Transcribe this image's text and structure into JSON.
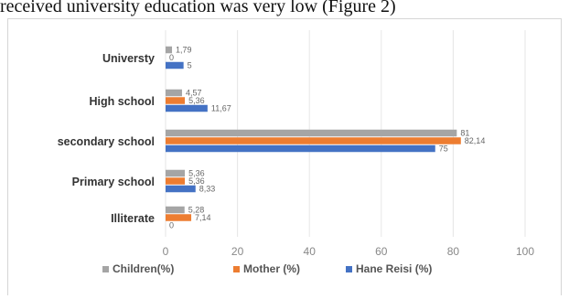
{
  "caption": "received university education was very low (Figure 2)",
  "chart_data": {
    "type": "bar",
    "orientation": "horizontal",
    "categories": [
      "Universty",
      "High school",
      "secondary school",
      "Primary school",
      "Illiterate"
    ],
    "series": [
      {
        "name": "Children(%)",
        "color": "#a5a5a5",
        "values": [
          1.79,
          4.57,
          81,
          5.36,
          5.28
        ],
        "labels": [
          "1,79",
          "4,57",
          "81",
          "5,36",
          "5,28"
        ]
      },
      {
        "name": "Mother (%)",
        "color": "#ed7d31",
        "values": [
          0,
          5.36,
          82.14,
          5.36,
          7.14
        ],
        "labels": [
          "0",
          "5,36",
          "82,14",
          "5,36",
          "7,14"
        ]
      },
      {
        "name": "Hane Reisi (%)",
        "color": "#4472c4",
        "values": [
          5,
          11.67,
          75,
          8.33,
          0
        ],
        "labels": [
          "5",
          "11,67",
          "75",
          "8,33",
          "0"
        ]
      }
    ],
    "xlim": [
      0,
      100
    ],
    "xticks": [
      0,
      20,
      40,
      60,
      80,
      100
    ],
    "grid": true,
    "legend_position": "bottom"
  }
}
